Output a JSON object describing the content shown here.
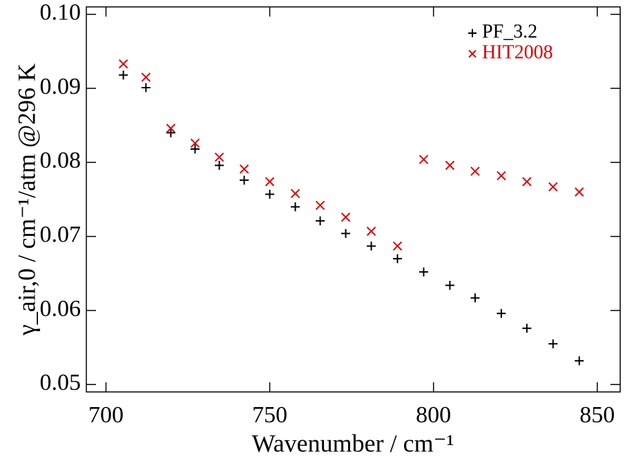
{
  "chart_data": {
    "type": "scatter",
    "x_label": "Wavenumber / cm⁻¹",
    "y_label": "γ_air,0 / cm⁻¹/atm @296 K",
    "x": [
      705.3,
      712.2,
      719.8,
      727.2,
      734.6,
      742.2,
      750,
      757.8,
      765.4,
      773.2,
      781,
      789,
      797,
      805,
      812.7,
      820.7,
      828.5,
      836.5,
      844.5
    ],
    "series": [
      {
        "name": "PF_3.2",
        "color": "#000000",
        "marker": "plus",
        "values": [
          0.0918,
          0.0901,
          0.084,
          0.0818,
          0.0796,
          0.0776,
          0.0757,
          0.074,
          0.0721,
          0.0704,
          0.0687,
          0.067,
          0.0652,
          0.0634,
          0.0617,
          0.0596,
          0.0576,
          0.0555,
          0.0532
        ]
      },
      {
        "name": "HIT2008",
        "color": "#e00000",
        "marker": "cross",
        "values": [
          0.0933,
          0.0915,
          0.0846,
          0.0826,
          0.0807,
          0.0791,
          0.0774,
          0.0758,
          0.0742,
          0.0726,
          0.0707,
          0.0687,
          0.0804,
          0.0796,
          0.0788,
          0.0782,
          0.0774,
          0.0767,
          0.076
        ]
      }
    ],
    "xlim": [
      694,
      857
    ],
    "xticks": [
      700,
      750,
      800,
      850
    ],
    "ylim": [
      0.049,
      0.101
    ],
    "yticks": [
      0.05,
      0.06,
      0.07,
      0.08,
      0.09,
      {
        "value": 0.1,
        "label": "0.10"
      }
    ],
    "grid": false,
    "legend": "upper right"
  }
}
